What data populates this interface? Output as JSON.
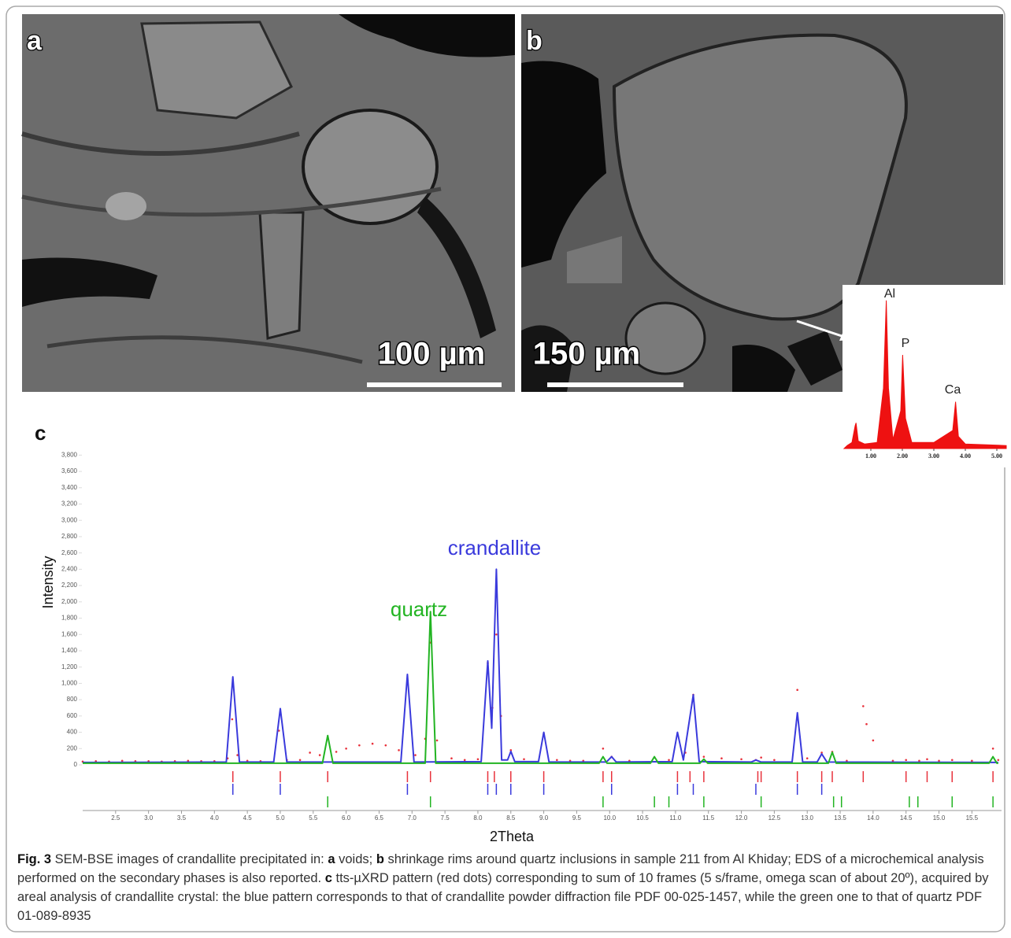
{
  "panels": [
    {
      "label": "a",
      "scale_bar": "100 µm"
    },
    {
      "label": "b",
      "scale_bar": "150 µm"
    }
  ],
  "chart_data": [
    {
      "type": "line",
      "label": "c",
      "xlabel": "2Theta",
      "ylabel": "Intensity",
      "annotations": [
        "crandallite",
        "quartz"
      ],
      "xlim": [
        2,
        15.95
      ],
      "ylim": [
        0,
        3900
      ],
      "xticks": [
        2.5,
        {
          "value": 3,
          "label": "3.0"
        },
        3.5,
        {
          "value": 4,
          "label": "4.0"
        },
        4.5,
        {
          "value": 5,
          "label": "5.0"
        },
        5.5,
        {
          "value": 6,
          "label": "6.0"
        },
        6.5,
        {
          "value": 7,
          "label": "7.0"
        },
        7.5,
        {
          "value": 8,
          "label": "8.0"
        },
        8.5,
        {
          "value": 9,
          "label": "9.0"
        },
        9.5,
        {
          "value": 10,
          "label": "10.0"
        },
        10.5,
        {
          "value": 11,
          "label": "11.0"
        },
        11.5,
        {
          "value": 12,
          "label": "12.0"
        },
        12.5,
        {
          "value": 13,
          "label": "13.0"
        },
        13.5,
        {
          "value": 14,
          "label": "14.0"
        },
        14.5,
        {
          "value": 15,
          "label": "15.0"
        },
        15.5
      ],
      "yticks": [
        0,
        200,
        400,
        600,
        800,
        {
          "value": 1000,
          "label": "1,000"
        },
        {
          "value": 1200,
          "label": "1,200"
        },
        {
          "value": 1400,
          "label": "1,400"
        },
        {
          "value": 1600,
          "label": "1,600"
        },
        {
          "value": 1800,
          "label": "1,800"
        },
        {
          "value": 2000,
          "label": "2,000"
        },
        {
          "value": 2200,
          "label": "2,200"
        },
        {
          "value": 2400,
          "label": "2,400"
        },
        {
          "value": 2600,
          "label": "2,600"
        },
        {
          "value": 2800,
          "label": "2,800"
        },
        {
          "value": 3000,
          "label": "3,000"
        },
        {
          "value": 3200,
          "label": "3,200"
        },
        {
          "value": 3400,
          "label": "3,400"
        },
        {
          "value": 3600,
          "label": "3,600"
        },
        {
          "value": 3800,
          "label": "3,800"
        }
      ],
      "series": [
        {
          "color": "#e8323c",
          "style": "markers",
          "x": [
            2.0,
            2.2,
            2.4,
            2.6,
            2.8,
            3.0,
            3.2,
            3.4,
            3.6,
            3.8,
            4.0,
            4.2,
            4.27,
            4.35,
            4.5,
            4.7,
            4.98,
            5.1,
            5.3,
            5.45,
            5.6,
            5.72,
            5.85,
            6.0,
            6.2,
            6.4,
            6.6,
            6.8,
            6.93,
            7.05,
            7.2,
            7.28,
            7.38,
            7.6,
            7.8,
            8.0,
            8.15,
            8.22,
            8.28,
            8.35,
            8.5,
            8.7,
            9.0,
            9.2,
            9.4,
            9.6,
            9.9,
            10.03,
            10.3,
            10.68,
            10.9,
            11.03,
            11.15,
            11.27,
            11.43,
            11.7,
            12.0,
            12.22,
            12.3,
            12.5,
            12.85,
            13.0,
            13.22,
            13.38,
            13.6,
            13.85,
            13.9,
            14.0,
            14.3,
            14.5,
            14.7,
            14.82,
            15.0,
            15.2,
            15.5,
            15.82,
            15.9
          ],
          "values": [
            40,
            45,
            40,
            50,
            45,
            45,
            40,
            45,
            50,
            45,
            45,
            80,
            560,
            120,
            50,
            45,
            420,
            60,
            60,
            150,
            120,
            330,
            160,
            200,
            240,
            260,
            240,
            180,
            990,
            120,
            320,
            1500,
            300,
            80,
            60,
            70,
            1250,
            700,
            1600,
            600,
            180,
            70,
            380,
            60,
            50,
            50,
            200,
            100,
            50,
            90,
            60,
            360,
            150,
            860,
            100,
            80,
            70,
            60,
            90,
            60,
            920,
            80,
            150,
            160,
            50,
            720,
            500,
            300,
            50,
            60,
            50,
            70,
            50,
            60,
            50,
            200,
            60
          ]
        },
        {
          "color": "#3a3adc",
          "style": "line",
          "x": [
            2.0,
            4.18,
            4.28,
            4.38,
            4.9,
            5.0,
            5.1,
            6.83,
            6.93,
            7.03,
            8.05,
            8.15,
            8.21,
            8.28,
            8.36,
            8.45,
            8.5,
            8.56,
            8.92,
            9.0,
            9.08,
            9.95,
            10.03,
            10.1,
            10.95,
            11.03,
            11.12,
            11.27,
            11.36,
            12.15,
            12.22,
            12.3,
            12.77,
            12.85,
            12.93,
            13.15,
            13.22,
            13.3,
            15.9
          ],
          "values": [
            30,
            35,
            1080,
            35,
            35,
            690,
            35,
            35,
            1110,
            35,
            40,
            1275,
            450,
            2400,
            60,
            60,
            165,
            40,
            40,
            400,
            35,
            35,
            100,
            35,
            40,
            400,
            60,
            860,
            40,
            35,
            60,
            35,
            35,
            640,
            35,
            35,
            135,
            35,
            30
          ]
        },
        {
          "color": "#22b422",
          "style": "line",
          "x": [
            2.0,
            5.64,
            5.72,
            5.8,
            7.2,
            7.28,
            7.36,
            9.84,
            9.9,
            9.96,
            10.62,
            10.68,
            10.74,
            11.37,
            11.43,
            11.49,
            13.32,
            13.38,
            13.44,
            15.76,
            15.82,
            15.88,
            15.9
          ],
          "values": [
            20,
            20,
            360,
            20,
            20,
            1880,
            20,
            20,
            100,
            20,
            20,
            100,
            20,
            20,
            70,
            20,
            20,
            155,
            20,
            20,
            100,
            20,
            20
          ]
        }
      ],
      "reference_ticks": [
        {
          "color": "#e8323c",
          "x": [
            4.28,
            5.0,
            5.72,
            6.93,
            7.28,
            8.15,
            8.25,
            8.5,
            9.0,
            9.9,
            10.03,
            11.03,
            11.22,
            11.43,
            12.25,
            12.3,
            12.85,
            13.22,
            13.38,
            13.85,
            14.5,
            14.82,
            15.2,
            15.82
          ]
        },
        {
          "color": "#3a3adc",
          "x": [
            4.28,
            5.0,
            6.93,
            8.15,
            8.28,
            8.5,
            9.0,
            10.03,
            11.03,
            11.27,
            12.22,
            12.85,
            13.22
          ]
        },
        {
          "color": "#22b422",
          "x": [
            5.72,
            7.28,
            9.9,
            10.68,
            10.9,
            11.43,
            12.3,
            13.4,
            13.52,
            14.55,
            14.68,
            15.2,
            15.82
          ]
        }
      ]
    },
    {
      "type": "area",
      "color": "#ee1111",
      "annotations": [
        "Al",
        "P",
        "Ca"
      ],
      "xlim": [
        0.15,
        5.3
      ],
      "ylim": [
        0,
        100
      ],
      "xticks": [
        {
          "value": 1,
          "label": "1.00"
        },
        {
          "value": 2,
          "label": "2.00"
        },
        {
          "value": 3,
          "label": "3.00"
        },
        {
          "value": 4,
          "label": "4.00"
        },
        {
          "value": 5,
          "label": "5.00"
        }
      ],
      "x": [
        0.15,
        0.25,
        0.4,
        0.5,
        0.53,
        0.6,
        0.8,
        1.2,
        1.4,
        1.49,
        1.56,
        1.7,
        1.95,
        2.01,
        2.1,
        2.3,
        3.0,
        3.6,
        3.69,
        3.78,
        4.0,
        5.3
      ],
      "values": [
        0,
        2,
        4,
        15,
        17,
        5,
        3,
        4,
        40,
        98,
        40,
        6,
        25,
        62,
        20,
        4,
        4,
        12,
        31,
        8,
        3,
        2
      ]
    }
  ],
  "caption": {
    "segments": [
      "Fig. 3",
      "  SEM-BSE images of crandallite precipitated in: ",
      "a",
      " voids; ",
      "b",
      " shrinkage rims around quartz inclusions in sample 211 from Al Khiday; EDS of a microchemical analysis performed on the secondary phases is also reported. ",
      "c",
      " tts-µXRD pattern (red dots) corresponding to sum of 10 frames (5 s/frame, omega scan of about 20º), acquired by areal analysis of crandallite crystal: the blue pattern corresponds to that of crandallite powder diffraction file PDF 00-025-1457, while the green one to that of quartz PDF 01-089-8935"
    ]
  }
}
